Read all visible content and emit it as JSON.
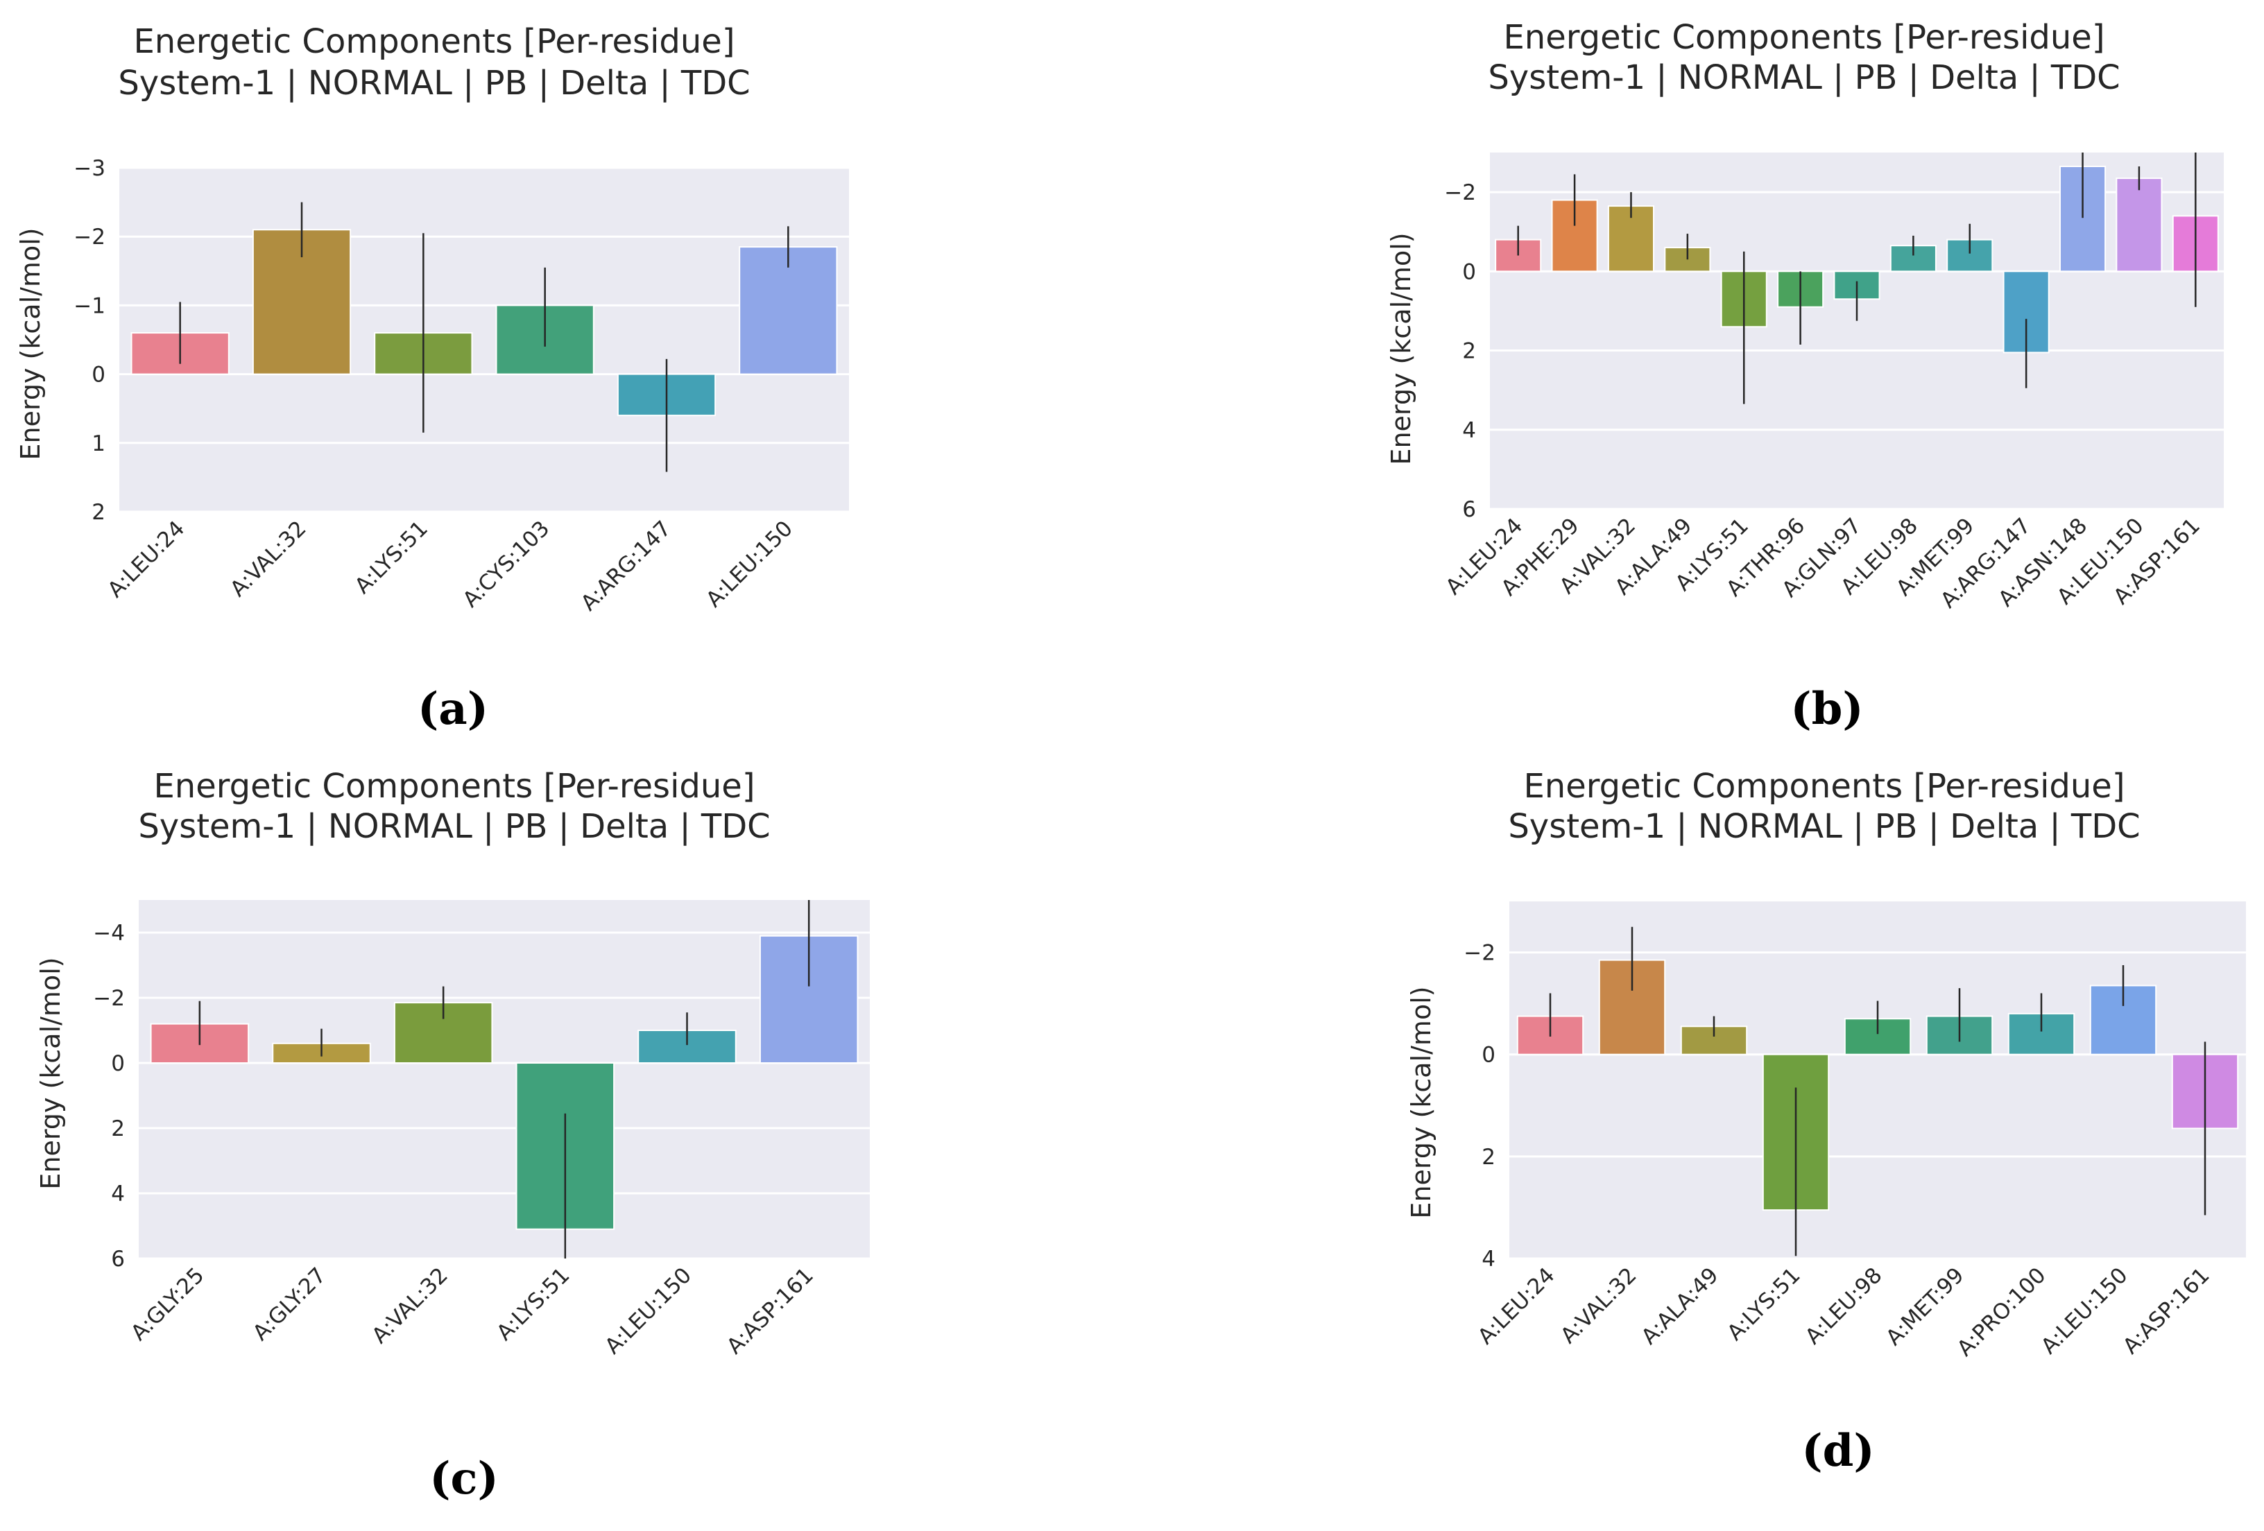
{
  "chart_data": [
    {
      "type": "bar",
      "panel_label": "(a)",
      "title": [
        "Energetic Components [Per-residue]",
        "System-1 | NORMAL | PB | Delta | TDC"
      ],
      "xlabel": "",
      "ylabel": "Energy (kcal/mol)",
      "ylim": [
        2,
        -3
      ],
      "yticks": [
        2,
        1,
        0,
        -1,
        -2,
        -3
      ],
      "ytick_labels": [
        "2",
        "1",
        "0",
        "−1",
        "−2",
        "−3"
      ],
      "categories": [
        "A:LEU:24",
        "A:VAL:32",
        "A:LYS:51",
        "A:CYS:103",
        "A:ARG:147",
        "A:LEU:150"
      ],
      "values": [
        -0.6,
        -2.1,
        -0.6,
        -1.0,
        0.6,
        -1.85
      ],
      "err_low": [
        -0.15,
        -1.7,
        0.85,
        -0.4,
        1.42,
        -1.55
      ],
      "err_high": [
        -1.05,
        -2.5,
        -2.05,
        -1.55,
        -0.22,
        -2.15
      ],
      "colors": [
        "#e8818f",
        "#b08d40",
        "#7b9c3f",
        "#42a17a",
        "#43a1b5",
        "#8fa6e8"
      ],
      "grid": true
    },
    {
      "type": "bar",
      "panel_label": "(b)",
      "title": [
        "Energetic Components [Per-residue]",
        "System-1 | NORMAL | PB | Delta | TDC"
      ],
      "xlabel": "",
      "ylabel": "Energy (kcal/mol)",
      "ylim": [
        6,
        -3
      ],
      "yticks": [
        6,
        4,
        2,
        0,
        -2
      ],
      "ytick_labels": [
        "6",
        "4",
        "2",
        "0",
        "−2"
      ],
      "categories": [
        "A:LEU:24",
        "A:PHE:29",
        "A:VAL:32",
        "A:ALA:49",
        "A:LYS:51",
        "A:THR:96",
        "A:GLN:97",
        "A:LEU:98",
        "A:MET:99",
        "A:ARG:147",
        "A:ASN:148",
        "A:LEU:150",
        "A:ASP:161"
      ],
      "values": [
        -0.8,
        -1.8,
        -1.65,
        -0.6,
        1.4,
        0.9,
        0.7,
        -0.65,
        -0.8,
        2.05,
        -2.65,
        -2.35,
        -1.4
      ],
      "err_low": [
        -0.4,
        -1.15,
        -1.35,
        -0.3,
        3.35,
        1.85,
        1.25,
        -0.4,
        -0.45,
        2.95,
        -1.35,
        -2.05,
        0.9
      ],
      "err_high": [
        -1.15,
        -2.45,
        -2.0,
        -0.95,
        -0.5,
        0.0,
        0.25,
        -0.9,
        -1.2,
        1.2,
        -3.0,
        -2.65,
        -3.0
      ],
      "colors": [
        "#e8818f",
        "#de8449",
        "#b39a41",
        "#a29a43",
        "#75a040",
        "#4ba25d",
        "#40a289",
        "#45a49b",
        "#45a3ab",
        "#4ea1c7",
        "#8fa7e8",
        "#c496e8",
        "#e57bd9"
      ],
      "grid": true
    },
    {
      "type": "bar",
      "panel_label": "(c)",
      "title": [
        "Energetic Components [Per-residue]",
        "System-1 | NORMAL | PB | Delta | TDC"
      ],
      "xlabel": "",
      "ylabel": "Energy (kcal/mol)",
      "ylim": [
        6,
        -5
      ],
      "yticks": [
        6,
        4,
        2,
        0,
        -2,
        -4
      ],
      "ytick_labels": [
        "6",
        "4",
        "2",
        "0",
        "−2",
        "−4"
      ],
      "categories": [
        "A:GLY:25",
        "A:GLY:27",
        "A:VAL:32",
        "A:LYS:51",
        "A:LEU:150",
        "A:ASP:161"
      ],
      "values": [
        -1.2,
        -0.6,
        -1.85,
        5.1,
        -1.0,
        -3.9
      ],
      "err_low": [
        -0.55,
        -0.2,
        -1.35,
        6.0,
        -0.55,
        -2.35
      ],
      "err_high": [
        -1.9,
        -1.05,
        -2.35,
        1.55,
        -1.55,
        -5.0
      ],
      "colors": [
        "#e8818f",
        "#b39a41",
        "#7a9c3d",
        "#40a17b",
        "#44a2b0",
        "#8fa6e8"
      ],
      "grid": true
    },
    {
      "type": "bar",
      "panel_label": "(d)",
      "title": [
        "Energetic Components [Per-residue]",
        "System-1 | NORMAL | PB | Delta | TDC"
      ],
      "xlabel": "",
      "ylabel": "Energy (kcal/mol)",
      "ylim": [
        4,
        -3
      ],
      "yticks": [
        4,
        2,
        0,
        -2
      ],
      "ytick_labels": [
        "4",
        "2",
        "0",
        "−2"
      ],
      "categories": [
        "A:LEU:24",
        "A:VAL:32",
        "A:ALA:49",
        "A:LYS:51",
        "A:LEU:98",
        "A:MET:99",
        "A:PRO:100",
        "A:LEU:150",
        "A:ASP:161"
      ],
      "values": [
        -0.75,
        -1.85,
        -0.55,
        3.05,
        -0.7,
        -0.75,
        -0.8,
        -1.35,
        1.45
      ],
      "err_low": [
        -0.35,
        -1.25,
        -0.35,
        0.65,
        -0.4,
        -0.25,
        -0.45,
        -0.95,
        -0.25
      ],
      "err_high": [
        -1.2,
        -2.5,
        -0.75,
        3.95,
        -1.05,
        -1.3,
        -1.2,
        -1.75,
        3.15
      ],
      "colors": [
        "#e8818f",
        "#c7874a",
        "#a29a43",
        "#6f9f3f",
        "#40a16c",
        "#42a18c",
        "#43a3a7",
        "#7aa4e8",
        "#cf8ae3"
      ],
      "grid": true
    }
  ]
}
